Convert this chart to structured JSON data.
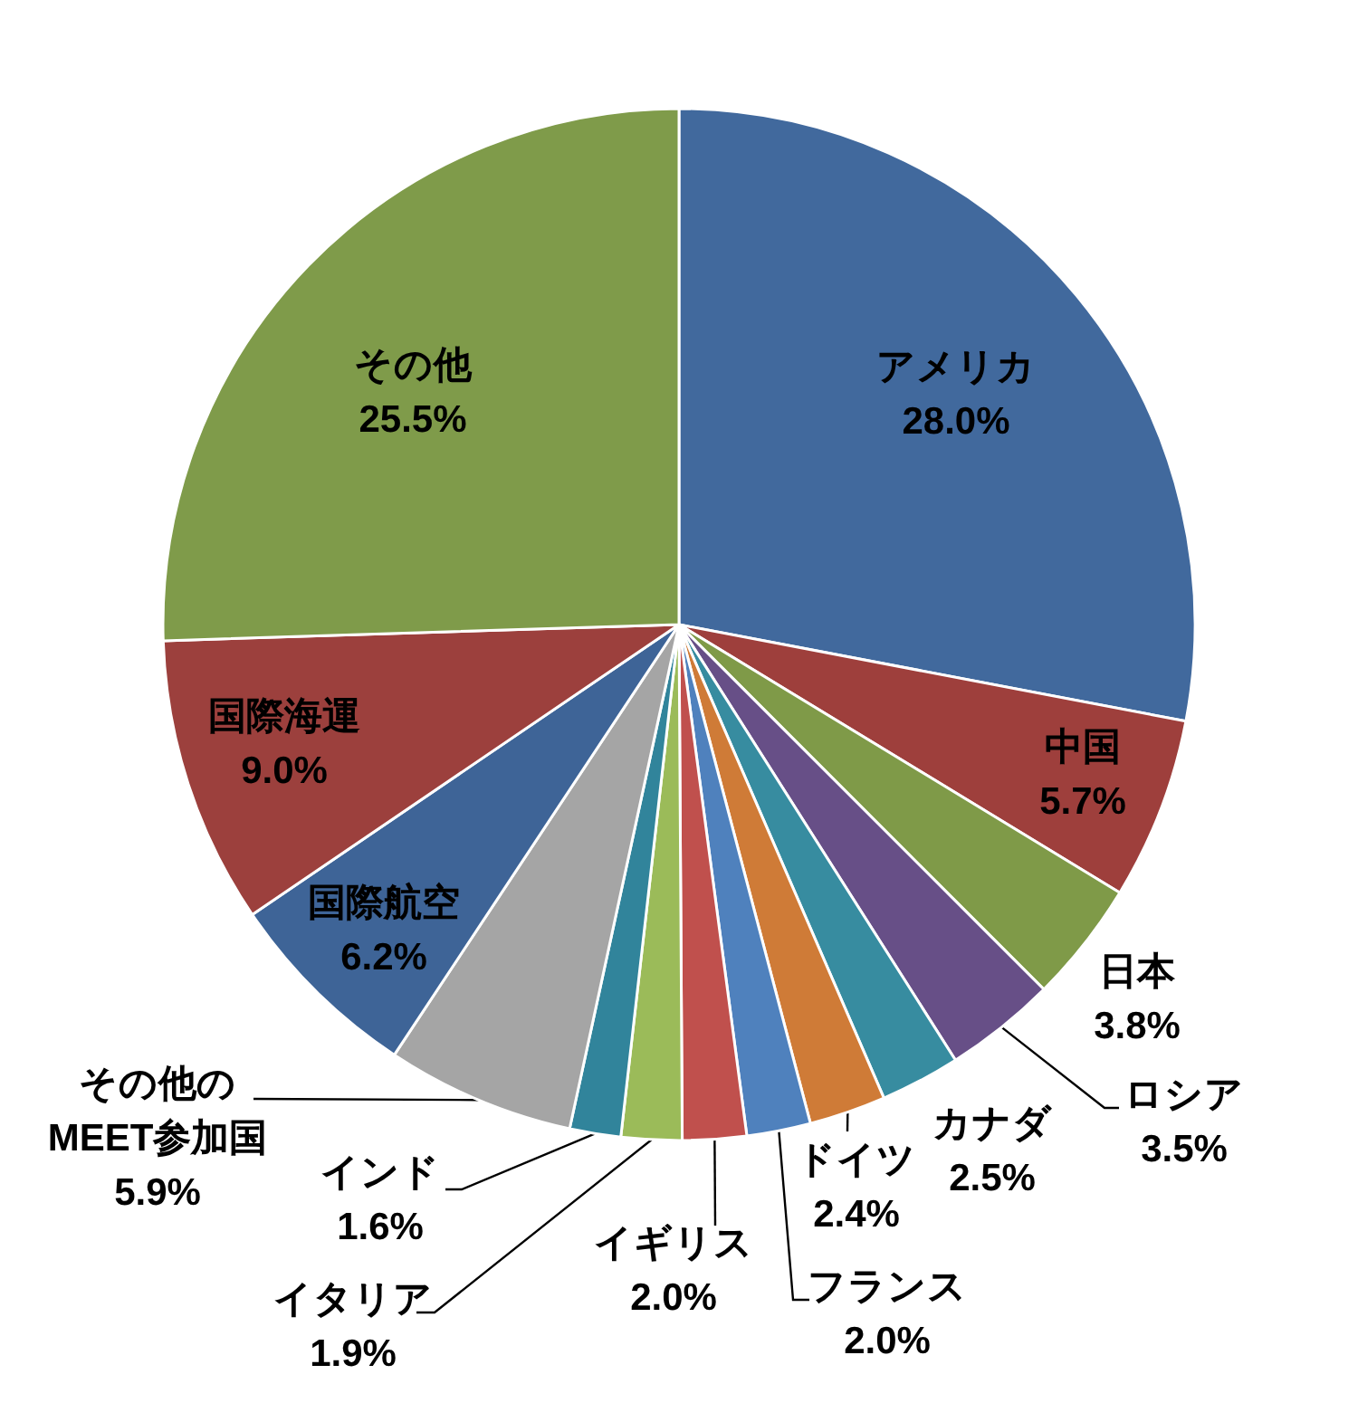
{
  "chart_data": {
    "type": "pie",
    "categories": [
      "アメリカ",
      "中国",
      "日本",
      "ロシア",
      "カナダ",
      "ドイツ",
      "フランス",
      "イギリス",
      "イタリア",
      "インド",
      "その他の\nMEET参加国",
      "国際航空",
      "国際海運",
      "その他"
    ],
    "values": [
      28.0,
      5.7,
      3.8,
      3.5,
      2.5,
      2.4,
      2.0,
      2.0,
      1.9,
      1.6,
      5.9,
      6.2,
      9.0,
      25.5
    ],
    "colors": [
      "#41699d",
      "#9e3f3c",
      "#7f9a48",
      "#674f87",
      "#378ca0",
      "#cf7b37",
      "#4f81bd",
      "#c0504d",
      "#9bbb59",
      "#31849b",
      "#a5a5a5",
      "#3e6497",
      "#9c403d",
      "#7f9b4a"
    ],
    "value_labels": [
      "28.0%",
      "5.7%",
      "3.8%",
      "3.5%",
      "2.5%",
      "2.4%",
      "2.0%",
      "2.0%",
      "1.9%",
      "1.6%",
      "5.9%",
      "6.2%",
      "9.0%",
      "25.5%"
    ]
  }
}
